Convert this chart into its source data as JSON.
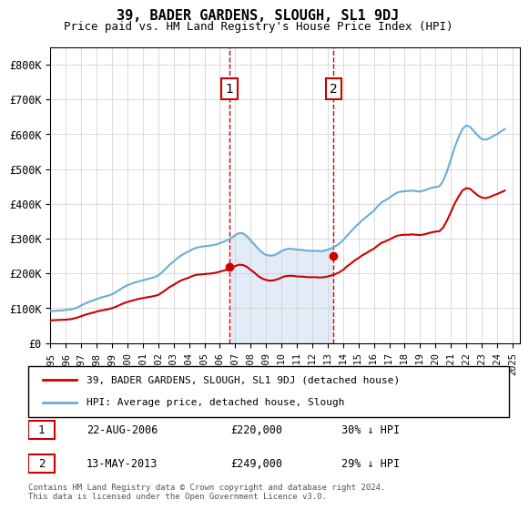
{
  "title": "39, BADER GARDENS, SLOUGH, SL1 9DJ",
  "subtitle": "Price paid vs. HM Land Registry's House Price Index (HPI)",
  "xlim_start": 1995.0,
  "xlim_end": 2025.5,
  "ylim": [
    0,
    850000
  ],
  "yticks": [
    0,
    100000,
    200000,
    300000,
    400000,
    500000,
    600000,
    700000,
    800000
  ],
  "ytick_labels": [
    "£0",
    "£100K",
    "£200K",
    "£300K",
    "£400K",
    "£500K",
    "£600K",
    "£700K",
    "£800K"
  ],
  "xtick_years": [
    1995,
    1996,
    1997,
    1998,
    1999,
    2000,
    2001,
    2002,
    2003,
    2004,
    2005,
    2006,
    2007,
    2008,
    2009,
    2010,
    2011,
    2012,
    2013,
    2014,
    2015,
    2016,
    2017,
    2018,
    2019,
    2020,
    2021,
    2022,
    2023,
    2024,
    2025
  ],
  "hpi_color": "#6baed6",
  "price_color": "#cc0000",
  "marker_color": "#cc0000",
  "annotation_bg": "#ffffff",
  "annotation_border": "#cc0000",
  "vline_color": "#cc0000",
  "shade_color": "#c6dbef",
  "legend_label_price": "39, BADER GARDENS, SLOUGH, SL1 9DJ (detached house)",
  "legend_label_hpi": "HPI: Average price, detached house, Slough",
  "annotation1_label": "1",
  "annotation1_date": "22-AUG-2006",
  "annotation1_price": "£220,000",
  "annotation1_pct": "30% ↓ HPI",
  "annotation2_label": "2",
  "annotation2_date": "13-MAY-2013",
  "annotation2_price": "£249,000",
  "annotation2_pct": "29% ↓ HPI",
  "footer": "Contains HM Land Registry data © Crown copyright and database right 2024.\nThis data is licensed under the Open Government Licence v3.0.",
  "hpi_x": [
    1995.0,
    1995.25,
    1995.5,
    1995.75,
    1996.0,
    1996.25,
    1996.5,
    1996.75,
    1997.0,
    1997.25,
    1997.5,
    1997.75,
    1998.0,
    1998.25,
    1998.5,
    1998.75,
    1999.0,
    1999.25,
    1999.5,
    1999.75,
    2000.0,
    2000.25,
    2000.5,
    2000.75,
    2001.0,
    2001.25,
    2001.5,
    2001.75,
    2002.0,
    2002.25,
    2002.5,
    2002.75,
    2003.0,
    2003.25,
    2003.5,
    2003.75,
    2004.0,
    2004.25,
    2004.5,
    2004.75,
    2005.0,
    2005.25,
    2005.5,
    2005.75,
    2006.0,
    2006.25,
    2006.5,
    2006.75,
    2007.0,
    2007.25,
    2007.5,
    2007.75,
    2008.0,
    2008.25,
    2008.5,
    2008.75,
    2009.0,
    2009.25,
    2009.5,
    2009.75,
    2010.0,
    2010.25,
    2010.5,
    2010.75,
    2011.0,
    2011.25,
    2011.5,
    2011.75,
    2012.0,
    2012.25,
    2012.5,
    2012.75,
    2013.0,
    2013.25,
    2013.5,
    2013.75,
    2014.0,
    2014.25,
    2014.5,
    2014.75,
    2015.0,
    2015.25,
    2015.5,
    2015.75,
    2016.0,
    2016.25,
    2016.5,
    2016.75,
    2017.0,
    2017.25,
    2017.5,
    2017.75,
    2018.0,
    2018.25,
    2018.5,
    2018.75,
    2019.0,
    2019.25,
    2019.5,
    2019.75,
    2020.0,
    2020.25,
    2020.5,
    2020.75,
    2021.0,
    2021.25,
    2021.5,
    2021.75,
    2022.0,
    2022.25,
    2022.5,
    2022.75,
    2023.0,
    2023.25,
    2023.5,
    2023.75,
    2024.0,
    2024.25,
    2024.5
  ],
  "hpi_y": [
    91000,
    92000,
    93000,
    93500,
    95000,
    96000,
    98000,
    102000,
    108000,
    113000,
    118000,
    122000,
    126000,
    130000,
    133000,
    136000,
    140000,
    146000,
    153000,
    160000,
    166000,
    170000,
    174000,
    177000,
    180000,
    183000,
    186000,
    189000,
    194000,
    203000,
    214000,
    225000,
    234000,
    244000,
    252000,
    258000,
    264000,
    270000,
    274000,
    276000,
    278000,
    279000,
    281000,
    283000,
    287000,
    291000,
    296000,
    302000,
    310000,
    316000,
    315000,
    307000,
    295000,
    283000,
    270000,
    260000,
    253000,
    251000,
    252000,
    257000,
    264000,
    269000,
    271000,
    270000,
    268000,
    268000,
    266000,
    265000,
    265000,
    265000,
    264000,
    265000,
    268000,
    272000,
    278000,
    285000,
    295000,
    308000,
    320000,
    332000,
    342000,
    353000,
    362000,
    371000,
    380000,
    393000,
    404000,
    410000,
    417000,
    425000,
    432000,
    435000,
    436000,
    437000,
    438000,
    436000,
    435000,
    438000,
    442000,
    446000,
    448000,
    450000,
    466000,
    493000,
    528000,
    563000,
    591000,
    615000,
    625000,
    621000,
    608000,
    596000,
    586000,
    584000,
    588000,
    595000,
    600000,
    608000,
    615000
  ],
  "price_x": [
    1995.0,
    1995.25,
    1995.5,
    1995.75,
    1996.0,
    1996.25,
    1996.5,
    1996.75,
    1997.0,
    1997.25,
    1997.5,
    1997.75,
    1998.0,
    1998.25,
    1998.5,
    1998.75,
    1999.0,
    1999.25,
    1999.5,
    1999.75,
    2000.0,
    2000.25,
    2000.5,
    2000.75,
    2001.0,
    2001.25,
    2001.5,
    2001.75,
    2002.0,
    2002.25,
    2002.5,
    2002.75,
    2003.0,
    2003.25,
    2003.5,
    2003.75,
    2004.0,
    2004.25,
    2004.5,
    2004.75,
    2005.0,
    2005.25,
    2005.5,
    2005.75,
    2006.0,
    2006.25,
    2006.5,
    2006.75,
    2007.0,
    2007.25,
    2007.5,
    2007.75,
    2008.0,
    2008.25,
    2008.5,
    2008.75,
    2009.0,
    2009.25,
    2009.5,
    2009.75,
    2010.0,
    2010.25,
    2010.5,
    2010.75,
    2011.0,
    2011.25,
    2011.5,
    2011.75,
    2012.0,
    2012.25,
    2012.5,
    2012.75,
    2013.0,
    2013.25,
    2013.5,
    2013.75,
    2014.0,
    2014.25,
    2014.5,
    2014.75,
    2015.0,
    2015.25,
    2015.5,
    2015.75,
    2016.0,
    2016.25,
    2016.5,
    2016.75,
    2017.0,
    2017.25,
    2017.5,
    2017.75,
    2018.0,
    2018.25,
    2018.5,
    2018.75,
    2019.0,
    2019.25,
    2019.5,
    2019.75,
    2020.0,
    2020.25,
    2020.5,
    2020.75,
    2021.0,
    2021.25,
    2021.5,
    2021.75,
    2022.0,
    2022.25,
    2022.5,
    2022.75,
    2023.0,
    2023.25,
    2023.5,
    2023.75,
    2024.0,
    2024.25,
    2024.5
  ],
  "price_y": [
    65000,
    65500,
    66000,
    66500,
    67000,
    68000,
    70000,
    73000,
    77000,
    81000,
    84000,
    87000,
    90000,
    93000,
    95000,
    97000,
    100000,
    104000,
    109000,
    114000,
    118000,
    121000,
    124000,
    127000,
    129000,
    131000,
    133000,
    135000,
    138000,
    145000,
    153000,
    161000,
    167000,
    174000,
    180000,
    184000,
    188000,
    193000,
    196000,
    197000,
    198000,
    199000,
    200000,
    202000,
    205000,
    208000,
    211000,
    215000,
    221000,
    225000,
    224000,
    219000,
    210000,
    202000,
    192000,
    185000,
    181000,
    179000,
    180000,
    183000,
    188000,
    192000,
    193000,
    193000,
    191000,
    191000,
    190000,
    189000,
    189000,
    189000,
    188000,
    189000,
    191000,
    194000,
    198000,
    203000,
    210000,
    220000,
    228000,
    237000,
    244000,
    252000,
    258000,
    265000,
    271000,
    280000,
    288000,
    292000,
    297000,
    303000,
    308000,
    310000,
    311000,
    311000,
    312000,
    311000,
    310000,
    312000,
    315000,
    318000,
    320000,
    321000,
    332000,
    352000,
    376000,
    401000,
    421000,
    438000,
    445000,
    443000,
    433000,
    424000,
    418000,
    416000,
    419000,
    424000,
    428000,
    433000,
    438000
  ],
  "sale1_x": 2006.622,
  "sale1_y": 220000,
  "sale2_x": 2013.37,
  "sale2_y": 249000,
  "vline1_x": 2006.622,
  "vline2_x": 2013.37,
  "shade_x1": 2006.622,
  "shade_x2": 2013.37
}
